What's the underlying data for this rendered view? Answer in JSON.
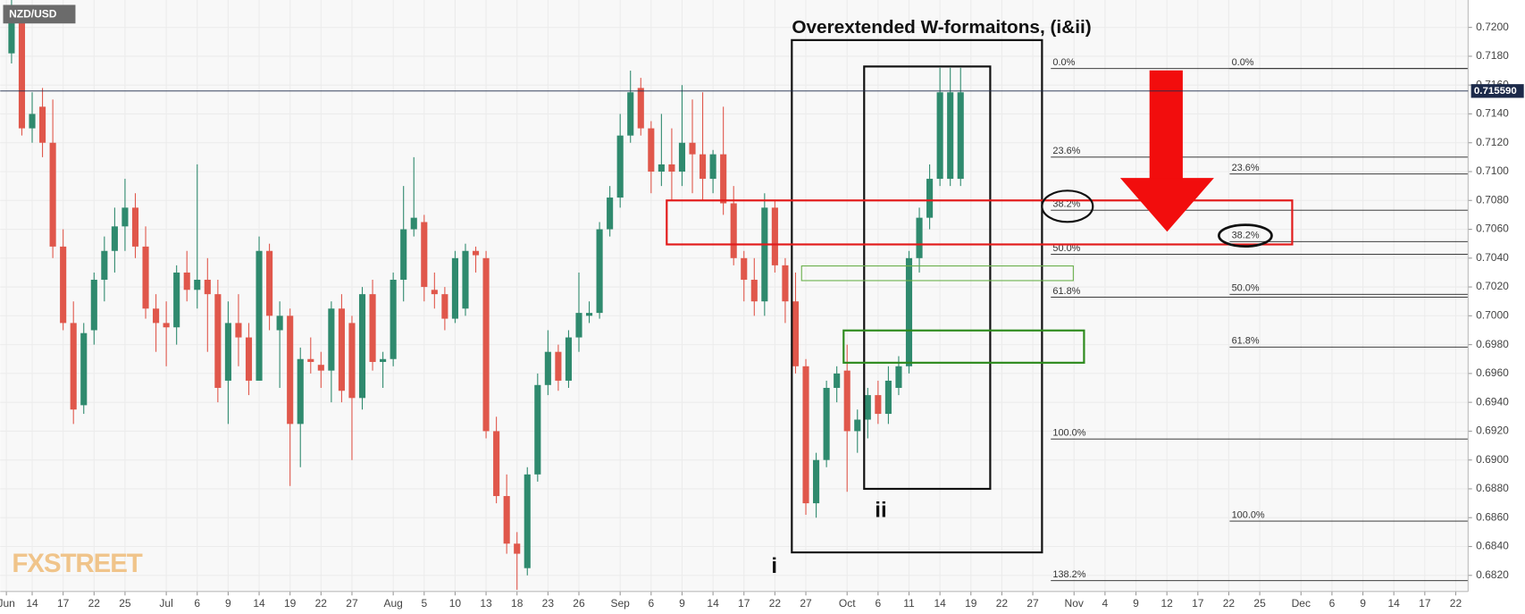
{
  "chart_data": {
    "type": "candlestick",
    "symbol": "NZD/USD",
    "title": "Overextended W-formaitons, (i&ii)",
    "wave_labels": [
      "i",
      "ii"
    ],
    "watermark": "FXSTREET",
    "up_color": "#2f8a6e",
    "down_color": "#e0574b",
    "grid": true,
    "xlim": [
      -3.1,
      139.2
    ],
    "ylim": [
      0.68088,
      0.7219
    ],
    "yticks": [
      {
        "value": 0.682,
        "label": "0.6820"
      },
      {
        "value": 0.684,
        "label": "0.6840"
      },
      {
        "value": 0.686,
        "label": "0.6860"
      },
      {
        "value": 0.688,
        "label": "0.6880"
      },
      {
        "value": 0.69,
        "label": "0.6900"
      },
      {
        "value": 0.692,
        "label": "0.6920"
      },
      {
        "value": 0.694,
        "label": "0.6940"
      },
      {
        "value": 0.696,
        "label": "0.6960"
      },
      {
        "value": 0.698,
        "label": "0.6980"
      },
      {
        "value": 0.7,
        "label": "0.7000"
      },
      {
        "value": 0.702,
        "label": "0.7020"
      },
      {
        "value": 0.704,
        "label": "0.7040"
      },
      {
        "value": 0.706,
        "label": "0.7060"
      },
      {
        "value": 0.708,
        "label": "0.7080"
      },
      {
        "value": 0.71,
        "label": "0.7100"
      },
      {
        "value": 0.712,
        "label": "0.7120"
      },
      {
        "value": 0.714,
        "label": "0.7140"
      },
      {
        "value": 0.716,
        "label": "0.7160"
      },
      {
        "value": 0.718,
        "label": "0.7180"
      },
      {
        "value": 0.72,
        "label": "0.7200"
      }
    ],
    "xticks": [
      {
        "value": -2.5,
        "label": "Jun"
      },
      {
        "value": 0,
        "label": "14"
      },
      {
        "value": 3,
        "label": "17"
      },
      {
        "value": 6,
        "label": "22"
      },
      {
        "value": 9,
        "label": "25"
      },
      {
        "value": 13,
        "label": "Jul"
      },
      {
        "value": 16,
        "label": "6"
      },
      {
        "value": 19,
        "label": "9"
      },
      {
        "value": 22,
        "label": "14"
      },
      {
        "value": 25,
        "label": "19"
      },
      {
        "value": 28,
        "label": "22"
      },
      {
        "value": 31,
        "label": "27"
      },
      {
        "value": 35,
        "label": "Aug"
      },
      {
        "value": 38,
        "label": "5"
      },
      {
        "value": 41,
        "label": "10"
      },
      {
        "value": 44,
        "label": "13"
      },
      {
        "value": 47,
        "label": "18"
      },
      {
        "value": 50,
        "label": "23"
      },
      {
        "value": 53,
        "label": "26"
      },
      {
        "value": 57,
        "label": "Sep"
      },
      {
        "value": 60,
        "label": "6"
      },
      {
        "value": 63,
        "label": "9"
      },
      {
        "value": 66,
        "label": "14"
      },
      {
        "value": 69,
        "label": "17"
      },
      {
        "value": 72,
        "label": "22"
      },
      {
        "value": 75,
        "label": "27"
      },
      {
        "value": 79,
        "label": "Oct"
      },
      {
        "value": 82,
        "label": "6"
      },
      {
        "value": 85,
        "label": "11"
      },
      {
        "value": 88,
        "label": "14"
      },
      {
        "value": 91,
        "label": "19"
      },
      {
        "value": 94,
        "label": "22"
      },
      {
        "value": 97,
        "label": "27"
      },
      {
        "value": 101,
        "label": "Nov"
      },
      {
        "value": 104,
        "label": "4"
      },
      {
        "value": 107,
        "label": "9"
      },
      {
        "value": 110,
        "label": "12"
      },
      {
        "value": 113,
        "label": "17"
      },
      {
        "value": 116,
        "label": "22"
      },
      {
        "value": 119,
        "label": "25"
      },
      {
        "value": 123,
        "label": "Dec"
      },
      {
        "value": 126,
        "label": "6"
      },
      {
        "value": 129,
        "label": "9"
      },
      {
        "value": 132,
        "label": "14"
      },
      {
        "value": 135,
        "label": "17"
      },
      {
        "value": 138,
        "label": "22"
      }
    ],
    "last_price": {
      "value": 0.71559,
      "label": "0.715590"
    },
    "fib_left": [
      {
        "label": "0.0%",
        "value": 0.71715
      },
      {
        "label": "23.6%",
        "value": 0.711
      },
      {
        "label": "38.2%",
        "value": 0.70732
      },
      {
        "label": "50.0%",
        "value": 0.70427
      },
      {
        "label": "61.8%",
        "value": 0.70129
      },
      {
        "label": "100.0%",
        "value": 0.69146
      },
      {
        "label": "138.2%",
        "value": 0.68163
      }
    ],
    "fib_right": [
      {
        "label": "0.0%",
        "value": 0.71715
      },
      {
        "label": "23.6%",
        "value": 0.70983
      },
      {
        "label": "38.2%",
        "value": 0.70515
      },
      {
        "label": "50.0%",
        "value": 0.70149
      },
      {
        "label": "61.8%",
        "value": 0.69783
      },
      {
        "label": "100.0%",
        "value": 0.68576
      }
    ],
    "candles": {
      "x": [
        -2,
        -1,
        0,
        1,
        2,
        3,
        4,
        5,
        6,
        7,
        8,
        9,
        10,
        11,
        12,
        13,
        14,
        15,
        16,
        17,
        18,
        19,
        20,
        21,
        22,
        23,
        24,
        25,
        26,
        27,
        28,
        29,
        30,
        31,
        32,
        33,
        34,
        35,
        36,
        37,
        38,
        39,
        40,
        41,
        42,
        43,
        44,
        45,
        46,
        47,
        48,
        49,
        50,
        51,
        52,
        53,
        54,
        55,
        56,
        57,
        58,
        59,
        60,
        61,
        62,
        63,
        64,
        65,
        66,
        67,
        68,
        69,
        70,
        71,
        72,
        73,
        74,
        75,
        76,
        77,
        78,
        79,
        80,
        81,
        82,
        83,
        84,
        85,
        86,
        87,
        88,
        89,
        90
      ],
      "open": [
        0.7182,
        0.721,
        0.713,
        0.7145,
        0.712,
        0.7048,
        0.6995,
        0.6938,
        0.699,
        0.7025,
        0.7045,
        0.7062,
        0.7075,
        0.7048,
        0.7005,
        0.6995,
        0.6992,
        0.703,
        0.7018,
        0.7025,
        0.7015,
        0.6955,
        0.6995,
        0.6985,
        0.6955,
        0.7045,
        0.699,
        0.7,
        0.6925,
        0.697,
        0.6966,
        0.6962,
        0.7005,
        0.6995,
        0.6943,
        0.7015,
        0.6968,
        0.697,
        0.7025,
        0.706,
        0.7065,
        0.7018,
        0.7015,
        0.6998,
        0.7005,
        0.7045,
        0.704,
        0.692,
        0.6875,
        0.6842,
        0.6825,
        0.689,
        0.6952,
        0.6975,
        0.6955,
        0.6985,
        0.7,
        0.7002,
        0.706,
        0.7082,
        0.7125,
        0.7158,
        0.713,
        0.71,
        0.7105,
        0.71,
        0.712,
        0.7112,
        0.7095,
        0.7112,
        0.7078,
        0.704,
        0.7025,
        0.701,
        0.7075,
        0.7035,
        0.701,
        0.6965,
        0.687,
        0.69,
        0.695,
        0.6962,
        0.692,
        0.6928,
        0.6945,
        0.6932,
        0.695,
        0.6965,
        0.704,
        0.7068,
        0.7095,
        0.7095,
        0.7095
      ],
      "high": [
        0.7219,
        0.7215,
        0.7155,
        0.7158,
        0.715,
        0.706,
        0.701,
        0.6995,
        0.703,
        0.7055,
        0.7075,
        0.7095,
        0.7085,
        0.7062,
        0.7015,
        0.701,
        0.7035,
        0.7045,
        0.7105,
        0.704,
        0.7025,
        0.701,
        0.7015,
        0.6995,
        0.7055,
        0.705,
        0.701,
        0.7005,
        0.6978,
        0.6985,
        0.6975,
        0.701,
        0.7015,
        0.7,
        0.702,
        0.7025,
        0.6975,
        0.703,
        0.709,
        0.711,
        0.707,
        0.703,
        0.702,
        0.7045,
        0.705,
        0.7048,
        0.7045,
        0.693,
        0.689,
        0.685,
        0.6895,
        0.696,
        0.699,
        0.698,
        0.699,
        0.703,
        0.701,
        0.7065,
        0.709,
        0.714,
        0.717,
        0.7165,
        0.7135,
        0.714,
        0.713,
        0.716,
        0.715,
        0.7155,
        0.7115,
        0.7145,
        0.709,
        0.7045,
        0.704,
        0.7085,
        0.708,
        0.704,
        0.703,
        0.697,
        0.6905,
        0.6955,
        0.6965,
        0.698,
        0.6935,
        0.695,
        0.6955,
        0.6965,
        0.6972,
        0.7045,
        0.7075,
        0.7105,
        0.7172,
        0.7172,
        0.7172
      ],
      "low": [
        0.7175,
        0.7125,
        0.712,
        0.711,
        0.704,
        0.699,
        0.6925,
        0.6932,
        0.698,
        0.701,
        0.703,
        0.7045,
        0.704,
        0.6998,
        0.6975,
        0.6965,
        0.698,
        0.701,
        0.7005,
        0.6975,
        0.694,
        0.6925,
        0.6965,
        0.6945,
        0.6955,
        0.699,
        0.695,
        0.6882,
        0.6895,
        0.696,
        0.695,
        0.694,
        0.694,
        0.69,
        0.6935,
        0.6962,
        0.695,
        0.6965,
        0.701,
        0.7055,
        0.701,
        0.7005,
        0.699,
        0.6995,
        0.7,
        0.703,
        0.6915,
        0.687,
        0.6835,
        0.681,
        0.682,
        0.6885,
        0.6945,
        0.6948,
        0.695,
        0.6975,
        0.6995,
        0.6998,
        0.7055,
        0.7075,
        0.712,
        0.7125,
        0.7085,
        0.709,
        0.708,
        0.709,
        0.7085,
        0.708,
        0.7085,
        0.707,
        0.7035,
        0.701,
        0.7,
        0.7,
        0.703,
        0.6995,
        0.696,
        0.6862,
        0.686,
        0.6895,
        0.694,
        0.6878,
        0.6905,
        0.6915,
        0.6925,
        0.6925,
        0.6945,
        0.696,
        0.703,
        0.706,
        0.709,
        0.709,
        0.709
      ],
      "close": [
        0.721,
        0.713,
        0.714,
        0.712,
        0.7048,
        0.6995,
        0.6935,
        0.6988,
        0.7025,
        0.7045,
        0.7062,
        0.7075,
        0.7048,
        0.7005,
        0.6995,
        0.6992,
        0.703,
        0.7018,
        0.7025,
        0.7015,
        0.695,
        0.6995,
        0.6985,
        0.6955,
        0.7045,
        0.7,
        0.7,
        0.6925,
        0.697,
        0.6968,
        0.6962,
        0.7005,
        0.6948,
        0.6943,
        0.7015,
        0.6968,
        0.697,
        0.7025,
        0.706,
        0.7068,
        0.702,
        0.7015,
        0.6998,
        0.704,
        0.7045,
        0.7042,
        0.692,
        0.6875,
        0.6842,
        0.6835,
        0.689,
        0.6952,
        0.6975,
        0.6955,
        0.6985,
        0.7002,
        0.7002,
        0.706,
        0.7082,
        0.7125,
        0.7155,
        0.713,
        0.71,
        0.7105,
        0.71,
        0.712,
        0.7112,
        0.7095,
        0.7112,
        0.7078,
        0.704,
        0.7025,
        0.701,
        0.7075,
        0.7035,
        0.701,
        0.6965,
        0.687,
        0.69,
        0.695,
        0.696,
        0.692,
        0.6928,
        0.6945,
        0.6932,
        0.6955,
        0.6965,
        0.704,
        0.7068,
        0.7095,
        0.7155,
        0.7155,
        0.7155
      ]
    }
  }
}
